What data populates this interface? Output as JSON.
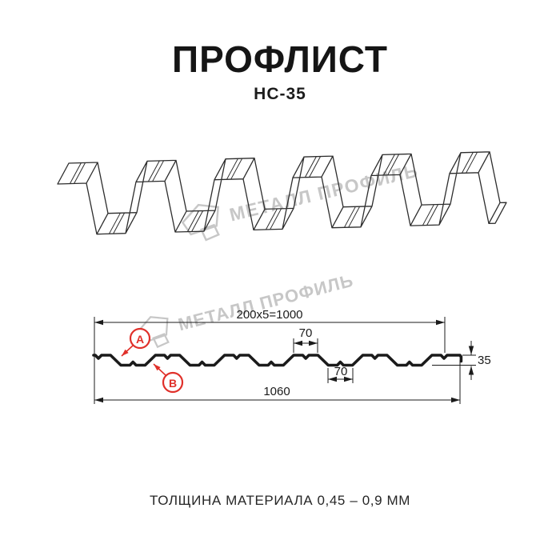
{
  "header": {
    "title": "ПРОФЛИСТ",
    "subtitle": "НС-35"
  },
  "footer": {
    "text": "ТОЛЩИНА МАТЕРИАЛА 0,45 – 0,9 ММ"
  },
  "watermark": {
    "brand": "МЕТАЛЛ ПРОФИЛЬ"
  },
  "cross_section": {
    "dim_pitch": "200x5=1000",
    "dim_crest_width": "70",
    "dim_valley_width": "70",
    "dim_height": "35",
    "dim_overall_width": "1060",
    "label_a": "A",
    "label_b": "B"
  },
  "colors": {
    "accent": "#e0302a",
    "line": "#1b1b1b",
    "watermark": "#c7c7c7"
  }
}
